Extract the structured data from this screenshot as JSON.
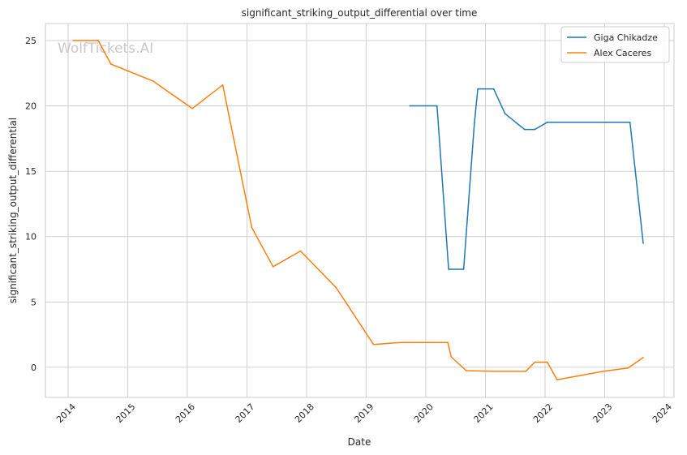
{
  "chart_data": {
    "type": "line",
    "title": "significant_striking_output_differential over time",
    "xlabel": "Date",
    "ylabel": "significant_striking_output_differential",
    "watermark": "WolfTickets.AI",
    "xlim": [
      "2013-08-15",
      "2024-03-01"
    ],
    "ylim": [
      -2.3,
      26.3
    ],
    "x_ticks": [
      "2014-01-01",
      "2015-01-01",
      "2016-01-01",
      "2017-01-01",
      "2018-01-01",
      "2019-01-01",
      "2020-01-01",
      "2021-01-01",
      "2022-01-01",
      "2023-01-01",
      "2024-01-01"
    ],
    "x_tick_labels": [
      "2014",
      "2015",
      "2016",
      "2017",
      "2018",
      "2019",
      "2020",
      "2021",
      "2022",
      "2023",
      "2024"
    ],
    "y_ticks": [
      0,
      5,
      10,
      15,
      20,
      25
    ],
    "y_tick_labels": [
      "0",
      "5",
      "10",
      "15",
      "20",
      "25"
    ],
    "grid": true,
    "legend_position": "top-right",
    "series": [
      {
        "name": "Giga Chikadze",
        "color": "#1f77b4",
        "points": [
          {
            "x": "2019-09-25",
            "y": 20.0
          },
          {
            "x": "2020-03-10",
            "y": 20.0
          },
          {
            "x": "2020-05-20",
            "y": 7.5
          },
          {
            "x": "2020-08-20",
            "y": 7.5
          },
          {
            "x": "2020-10-25",
            "y": 18.7
          },
          {
            "x": "2020-11-15",
            "y": 21.3
          },
          {
            "x": "2021-02-20",
            "y": 21.3
          },
          {
            "x": "2021-05-01",
            "y": 19.4
          },
          {
            "x": "2021-08-28",
            "y": 18.2
          },
          {
            "x": "2021-10-30",
            "y": 18.2
          },
          {
            "x": "2022-01-15",
            "y": 18.75
          },
          {
            "x": "2023-06-05",
            "y": 18.75
          },
          {
            "x": "2023-08-25",
            "y": 9.5
          }
        ]
      },
      {
        "name": "Alex Caceres",
        "color": "#ff7f0e",
        "points": [
          {
            "x": "2014-02-01",
            "y": 25.0
          },
          {
            "x": "2014-07-05",
            "y": 25.0
          },
          {
            "x": "2014-09-20",
            "y": 23.2
          },
          {
            "x": "2015-06-05",
            "y": 21.9
          },
          {
            "x": "2016-02-01",
            "y": 19.8
          },
          {
            "x": "2016-08-05",
            "y": 21.6
          },
          {
            "x": "2017-01-30",
            "y": 10.7
          },
          {
            "x": "2017-06-10",
            "y": 7.7
          },
          {
            "x": "2017-11-25",
            "y": 8.9
          },
          {
            "x": "2018-07-01",
            "y": 6.1
          },
          {
            "x": "2019-02-15",
            "y": 1.75
          },
          {
            "x": "2019-08-01",
            "y": 1.9
          },
          {
            "x": "2020-05-15",
            "y": 1.9
          },
          {
            "x": "2020-06-05",
            "y": 0.8
          },
          {
            "x": "2020-09-05",
            "y": -0.25
          },
          {
            "x": "2021-02-15",
            "y": -0.3
          },
          {
            "x": "2021-09-05",
            "y": -0.3
          },
          {
            "x": "2021-10-30",
            "y": 0.4
          },
          {
            "x": "2022-01-15",
            "y": 0.4
          },
          {
            "x": "2022-03-15",
            "y": -0.95
          },
          {
            "x": "2022-12-25",
            "y": -0.3
          },
          {
            "x": "2023-05-25",
            "y": -0.05
          },
          {
            "x": "2023-08-25",
            "y": 0.75
          }
        ]
      }
    ]
  }
}
